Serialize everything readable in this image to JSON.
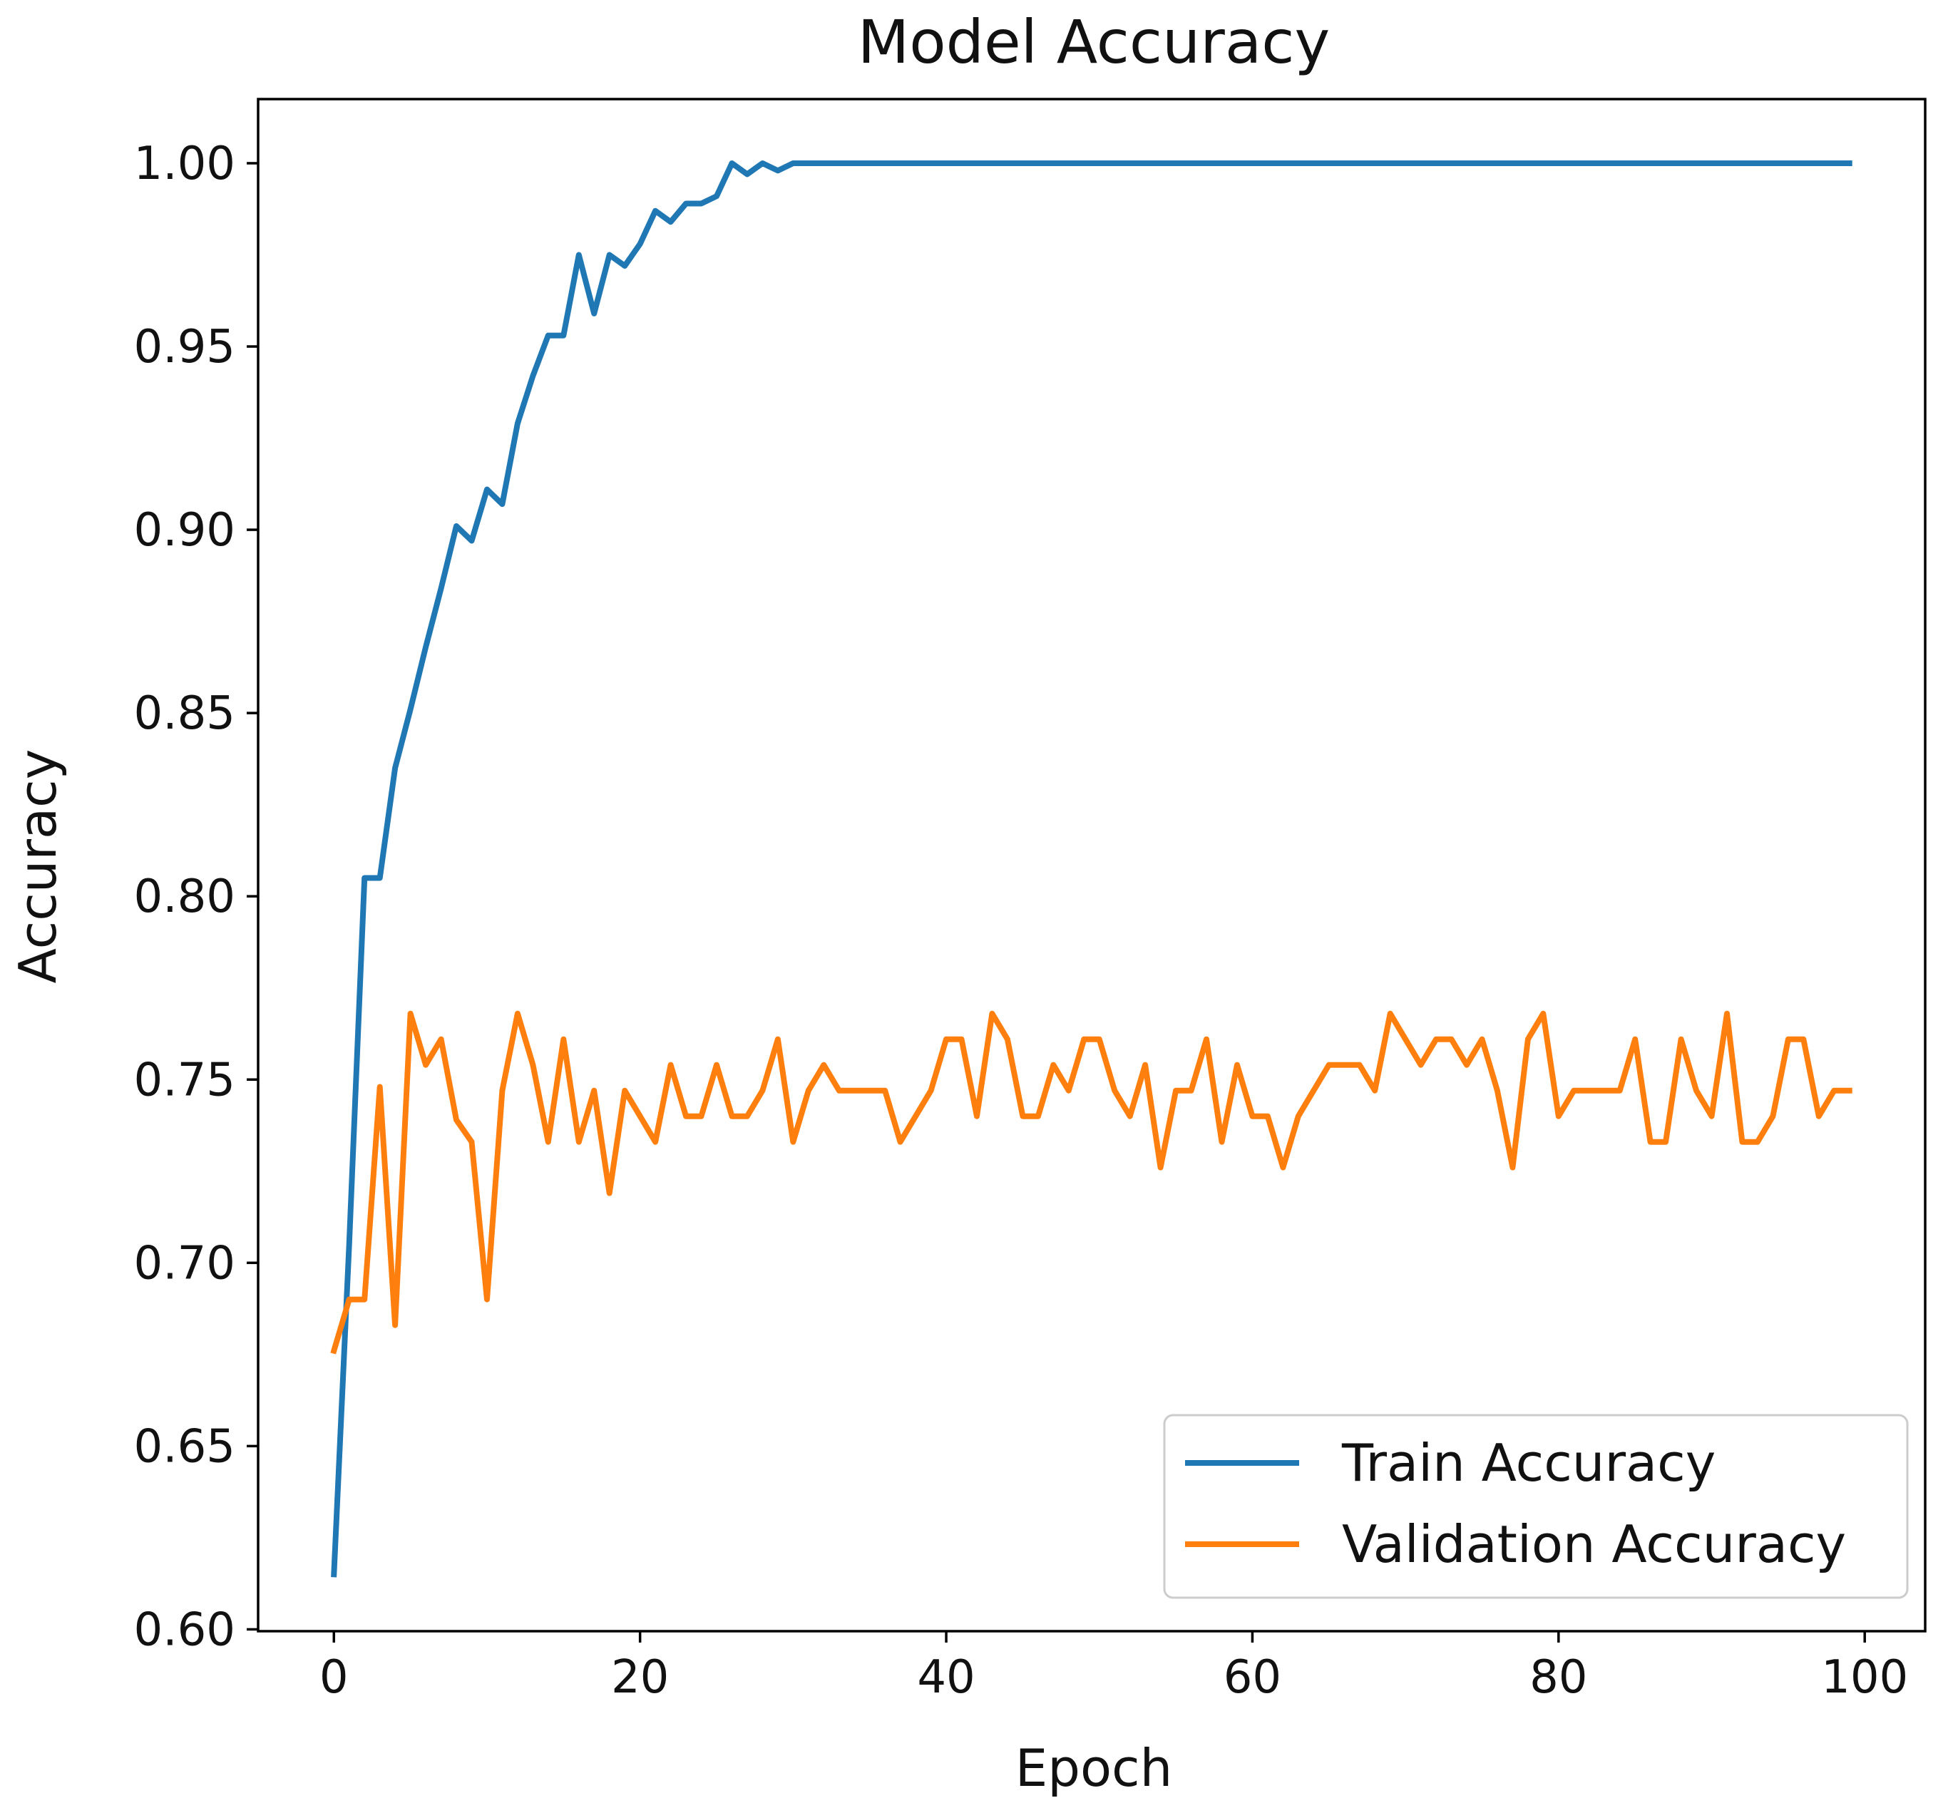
{
  "chart_data": {
    "type": "line",
    "title": "Model Accuracy",
    "xlabel": "Epoch",
    "ylabel": "Accuracy",
    "xlim": [
      -4.95,
      103.95
    ],
    "ylim": [
      0.5995,
      1.0175
    ],
    "xticks": [
      0,
      20,
      40,
      60,
      80,
      100
    ],
    "xtick_labels": [
      "0",
      "20",
      "40",
      "60",
      "80",
      "100"
    ],
    "yticks": [
      0.6,
      0.65,
      0.7,
      0.75,
      0.8,
      0.85,
      0.9,
      0.95,
      1.0
    ],
    "ytick_labels": [
      "0.60",
      "0.65",
      "0.70",
      "0.75",
      "0.80",
      "0.85",
      "0.90",
      "0.95",
      "1.00"
    ],
    "grid": false,
    "legend": "lower right",
    "x": [
      0,
      1,
      2,
      3,
      4,
      5,
      6,
      7,
      8,
      9,
      10,
      11,
      12,
      13,
      14,
      15,
      16,
      17,
      18,
      19,
      20,
      21,
      22,
      23,
      24,
      25,
      26,
      27,
      28,
      29,
      30,
      31,
      32,
      33,
      34,
      35,
      36,
      37,
      38,
      39,
      40,
      41,
      42,
      43,
      44,
      45,
      46,
      47,
      48,
      49,
      50,
      51,
      52,
      53,
      54,
      55,
      56,
      57,
      58,
      59,
      60,
      61,
      62,
      63,
      64,
      65,
      66,
      67,
      68,
      69,
      70,
      71,
      72,
      73,
      74,
      75,
      76,
      77,
      78,
      79,
      80,
      81,
      82,
      83,
      84,
      85,
      86,
      87,
      88,
      89,
      90,
      91,
      92,
      93,
      94,
      95,
      96,
      97,
      98,
      99
    ],
    "series": [
      {
        "name": "Train Accuracy",
        "color": "#1f77b4",
        "values": [
          0.615,
          0.705,
          0.805,
          0.805,
          0.835,
          0.851,
          0.868,
          0.884,
          0.901,
          0.897,
          0.911,
          0.907,
          0.929,
          0.942,
          0.953,
          0.953,
          0.975,
          0.959,
          0.975,
          0.972,
          0.978,
          0.987,
          0.984,
          0.989,
          0.989,
          0.991,
          1.0,
          0.997,
          1.0,
          0.998,
          1.0,
          1.0,
          1.0,
          1.0,
          1.0,
          1.0,
          1.0,
          1.0,
          1.0,
          1.0,
          1.0,
          1.0,
          1.0,
          1.0,
          1.0,
          1.0,
          1.0,
          1.0,
          1.0,
          1.0,
          1.0,
          1.0,
          1.0,
          1.0,
          1.0,
          1.0,
          1.0,
          1.0,
          1.0,
          1.0,
          1.0,
          1.0,
          1.0,
          1.0,
          1.0,
          1.0,
          1.0,
          1.0,
          1.0,
          1.0,
          1.0,
          1.0,
          1.0,
          1.0,
          1.0,
          1.0,
          1.0,
          1.0,
          1.0,
          1.0,
          1.0,
          1.0,
          1.0,
          1.0,
          1.0,
          1.0,
          1.0,
          1.0,
          1.0,
          1.0,
          1.0,
          1.0,
          1.0,
          1.0,
          1.0,
          1.0,
          1.0,
          1.0,
          1.0,
          1.0
        ]
      },
      {
        "name": "Validation Accuracy",
        "color": "#ff7f0e",
        "values": [
          0.676,
          0.69,
          0.69,
          0.748,
          0.683,
          0.768,
          0.754,
          0.761,
          0.739,
          0.733,
          0.69,
          0.747,
          0.768,
          0.754,
          0.733,
          0.761,
          0.733,
          0.747,
          0.719,
          0.747,
          0.74,
          0.733,
          0.754,
          0.74,
          0.74,
          0.754,
          0.74,
          0.74,
          0.747,
          0.761,
          0.733,
          0.747,
          0.754,
          0.747,
          0.747,
          0.747,
          0.747,
          0.733,
          0.74,
          0.747,
          0.761,
          0.761,
          0.74,
          0.768,
          0.761,
          0.74,
          0.74,
          0.754,
          0.747,
          0.761,
          0.761,
          0.747,
          0.74,
          0.754,
          0.726,
          0.747,
          0.747,
          0.761,
          0.733,
          0.754,
          0.74,
          0.74,
          0.726,
          0.74,
          0.747,
          0.754,
          0.754,
          0.754,
          0.747,
          0.768,
          0.761,
          0.754,
          0.761,
          0.761,
          0.754,
          0.761,
          0.747,
          0.726,
          0.761,
          0.768,
          0.74,
          0.747,
          0.747,
          0.747,
          0.747,
          0.761,
          0.733,
          0.733,
          0.761,
          0.747,
          0.74,
          0.768,
          0.733,
          0.733,
          0.74,
          0.761,
          0.761,
          0.74,
          0.747,
          0.747
        ]
      }
    ]
  }
}
